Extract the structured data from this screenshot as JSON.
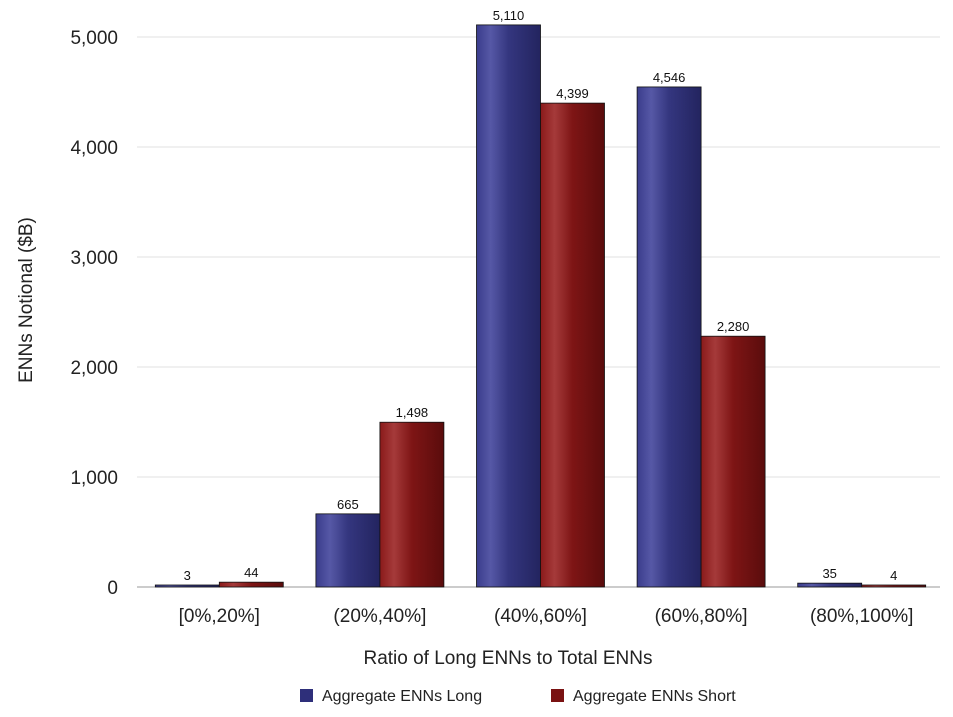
{
  "chart_data": {
    "type": "bar",
    "categories": [
      "[0%,20%]",
      "(20%,40%]",
      "(40%,60%]",
      "(60%,80%]",
      "(80%,100%]"
    ],
    "series": [
      {
        "name": "Aggregate ENNs Long",
        "color": "#2e2f7a",
        "values": [
          3,
          665,
          5110,
          4546,
          35
        ],
        "labels": [
          "3",
          "665",
          "5,110",
          "4,546",
          "35"
        ]
      },
      {
        "name": "Aggregate ENNs Short",
        "color": "#7a1212",
        "values": [
          44,
          1498,
          4399,
          2280,
          4
        ],
        "labels": [
          "44",
          "1,498",
          "4,399",
          "2,280",
          "4"
        ]
      }
    ],
    "xlabel": "Ratio of Long ENNs to Total ENNs",
    "ylabel": "ENNs Notional ($B)",
    "ylim": [
      0,
      5000
    ],
    "yticks": [
      0,
      1000,
      2000,
      3000,
      4000,
      5000
    ],
    "ytick_labels": [
      "0",
      "1,000",
      "2,000",
      "3,000",
      "4,000",
      "5,000"
    ],
    "grid": true,
    "legend_position": "bottom-center"
  }
}
